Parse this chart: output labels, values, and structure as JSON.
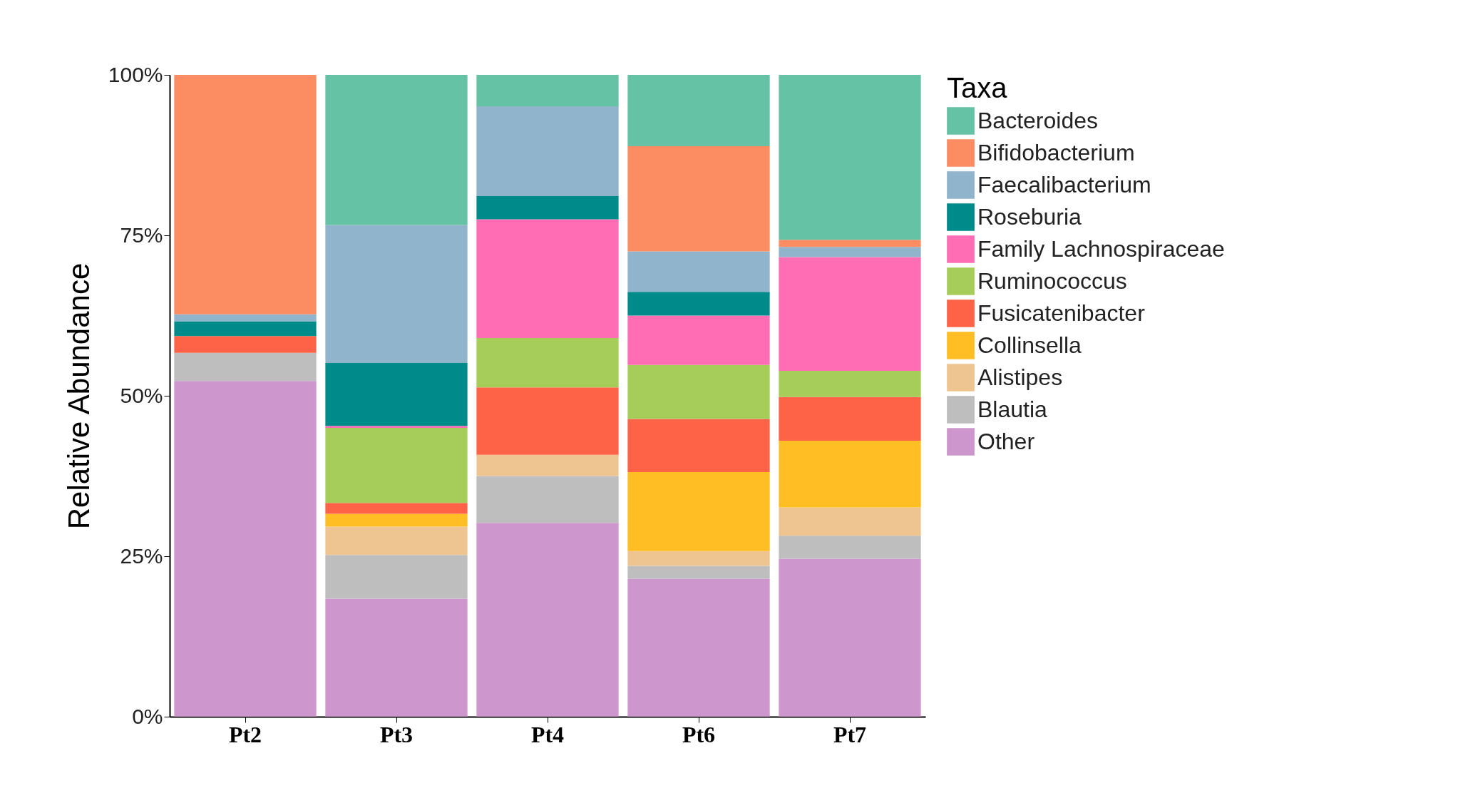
{
  "chart_data": {
    "type": "bar",
    "stacked": true,
    "ylabel": "Relative Abundance",
    "legend_title": "Taxa",
    "legend": "right",
    "categories": [
      "Pt2",
      "Pt3",
      "Pt4",
      "Pt6",
      "Pt7"
    ],
    "ylim": [
      0,
      100
    ],
    "yticks": [
      {
        "value": 0,
        "label": "0%"
      },
      {
        "value": 25,
        "label": "25%"
      },
      {
        "value": 50,
        "label": "50%"
      },
      {
        "value": 75,
        "label": "75%"
      },
      {
        "value": 100,
        "label": "100%"
      }
    ],
    "series": [
      {
        "name": "Other",
        "color": "#cd96cd",
        "values": [
          52.3,
          18.4,
          30.2,
          21.5,
          24.6
        ]
      },
      {
        "name": "Blautia",
        "color": "#bebebe",
        "values": [
          4.4,
          6.8,
          7.3,
          2.0,
          3.6
        ]
      },
      {
        "name": "Alistipes",
        "color": "#eec591",
        "values": [
          0,
          4.4,
          3.3,
          2.3,
          4.4
        ]
      },
      {
        "name": "Collinsella",
        "color": "#ffbf24",
        "values": [
          0,
          2.0,
          0,
          12.3,
          10.4
        ]
      },
      {
        "name": "Fusicatenibacter",
        "color": "#ff6347",
        "values": [
          2.6,
          1.7,
          10.5,
          8.3,
          6.8
        ]
      },
      {
        "name": "Ruminococcus",
        "color": "#a6cd5a",
        "values": [
          0,
          11.7,
          7.7,
          8.4,
          4.1
        ]
      },
      {
        "name": "Family Lachnospiraceae",
        "color": "#ff6eb4",
        "values": [
          0,
          0.3,
          18.5,
          7.7,
          17.7
        ]
      },
      {
        "name": "Roseburia",
        "color": "#008b8b",
        "values": [
          2.3,
          9.8,
          3.6,
          3.7,
          0
        ]
      },
      {
        "name": "Faecalibacterium",
        "color": "#8fb4cb",
        "values": [
          1.1,
          21.5,
          14.0,
          6.3,
          1.6
        ]
      },
      {
        "name": "Bifidobacterium",
        "color": "#fc8d62",
        "values": [
          37.3,
          0,
          0,
          16.4,
          1.1
        ]
      },
      {
        "name": "Bacteroides",
        "color": "#66c2a5",
        "values": [
          0,
          23.4,
          4.9,
          11.1,
          25.7
        ]
      }
    ]
  }
}
